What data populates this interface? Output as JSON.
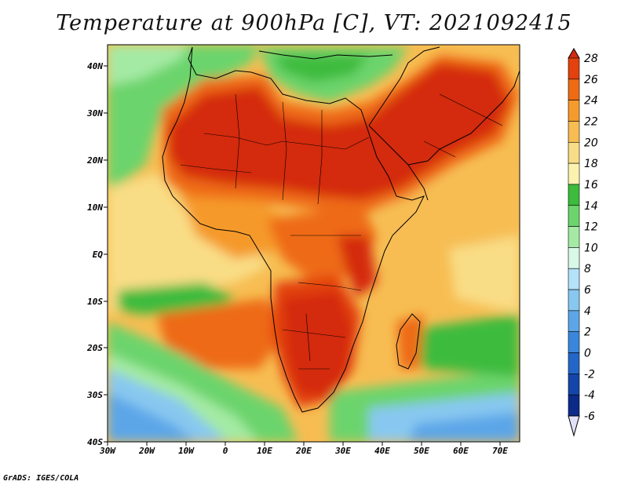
{
  "title": "Temperature at 900hPa [C], VT: 2021092415",
  "credit": "GrADS: IGES/COLA",
  "map": {
    "region": "Africa, Arabia and surrounding oceans",
    "variable": "Temperature at 900hPa",
    "units": "C",
    "valid_time": "2021092415",
    "lon_ticks": [
      "30W",
      "20W",
      "10W",
      "0",
      "10E",
      "20E",
      "30E",
      "40E",
      "50E",
      "60E",
      "70E"
    ],
    "lat_ticks": [
      "40N",
      "30N",
      "20N",
      "10N",
      "EQ",
      "10S",
      "20S",
      "30S",
      "40S"
    ]
  },
  "colorbar": {
    "levels": [
      "28",
      "26",
      "24",
      "22",
      "20",
      "18",
      "16",
      "14",
      "12",
      "10",
      "8",
      "6",
      "4",
      "2",
      "0",
      "-2",
      "-4",
      "-6"
    ],
    "colors": [
      "#d42a10",
      "#e3420f",
      "#ee6b14",
      "#f59a2c",
      "#f7bd52",
      "#f9dd86",
      "#fbf2b0",
      "#3cbb3c",
      "#6cd46c",
      "#a4eaa4",
      "#d8f8e8",
      "#b4e2f8",
      "#88c8f0",
      "#5ca6e8",
      "#3a86dc",
      "#2466c8",
      "#1446aa",
      "#0c2a88",
      "#0a1670"
    ]
  }
}
